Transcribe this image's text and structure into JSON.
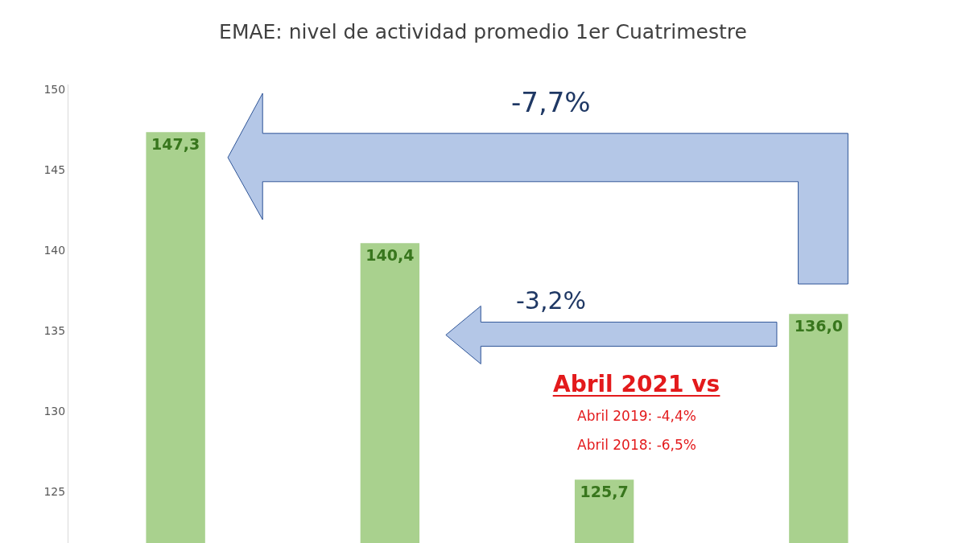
{
  "chart_data": {
    "type": "bar",
    "title": "EMAE: nivel de actividad promedio 1er Cuatrimestre",
    "categories": [
      null,
      null,
      null,
      null
    ],
    "values": [
      147.3,
      140.4,
      125.7,
      136.0
    ],
    "value_labels": [
      "147,3",
      "140,4",
      "125,7",
      "136,0"
    ],
    "color": "#a9d18e",
    "ylim": [
      121.8,
      150.3
    ],
    "yticks": [
      125,
      130,
      135,
      140,
      145,
      150
    ],
    "legend": false,
    "annotations": [
      "-7,7%",
      "-3,2%",
      "Abril 2021 vs",
      "Abril 2019: -4,4%",
      "Abril 2018: -6,5%"
    ]
  }
}
